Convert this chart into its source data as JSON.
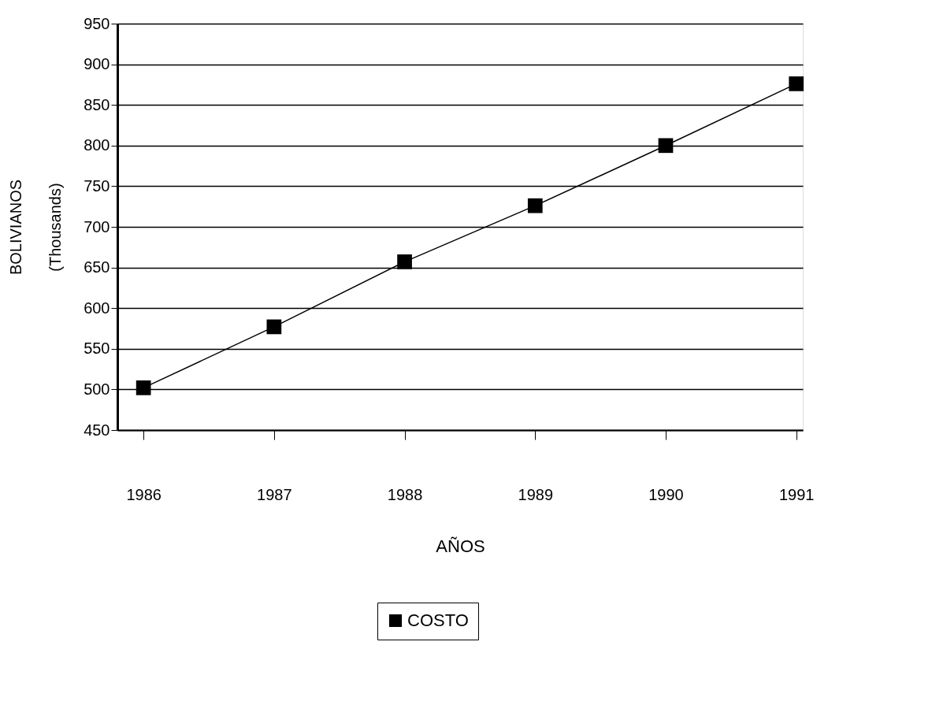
{
  "chart_data": {
    "type": "line",
    "xlabel": "AÑOS",
    "ylabel": "BOLIVIANOS\n(Thousands)",
    "categories": [
      "1986",
      "1987",
      "1988",
      "1989",
      "1990",
      "1991"
    ],
    "series": [
      {
        "name": "COSTO",
        "color": "#000000",
        "values": [
          502,
          577,
          657,
          726,
          800,
          876
        ]
      }
    ],
    "ylim": [
      450,
      950
    ],
    "yticks": [
      450,
      500,
      550,
      600,
      650,
      700,
      750,
      800,
      850,
      900,
      950
    ],
    "grid": "y",
    "legend": "bottom",
    "marker": "square",
    "line_style": "solid"
  }
}
